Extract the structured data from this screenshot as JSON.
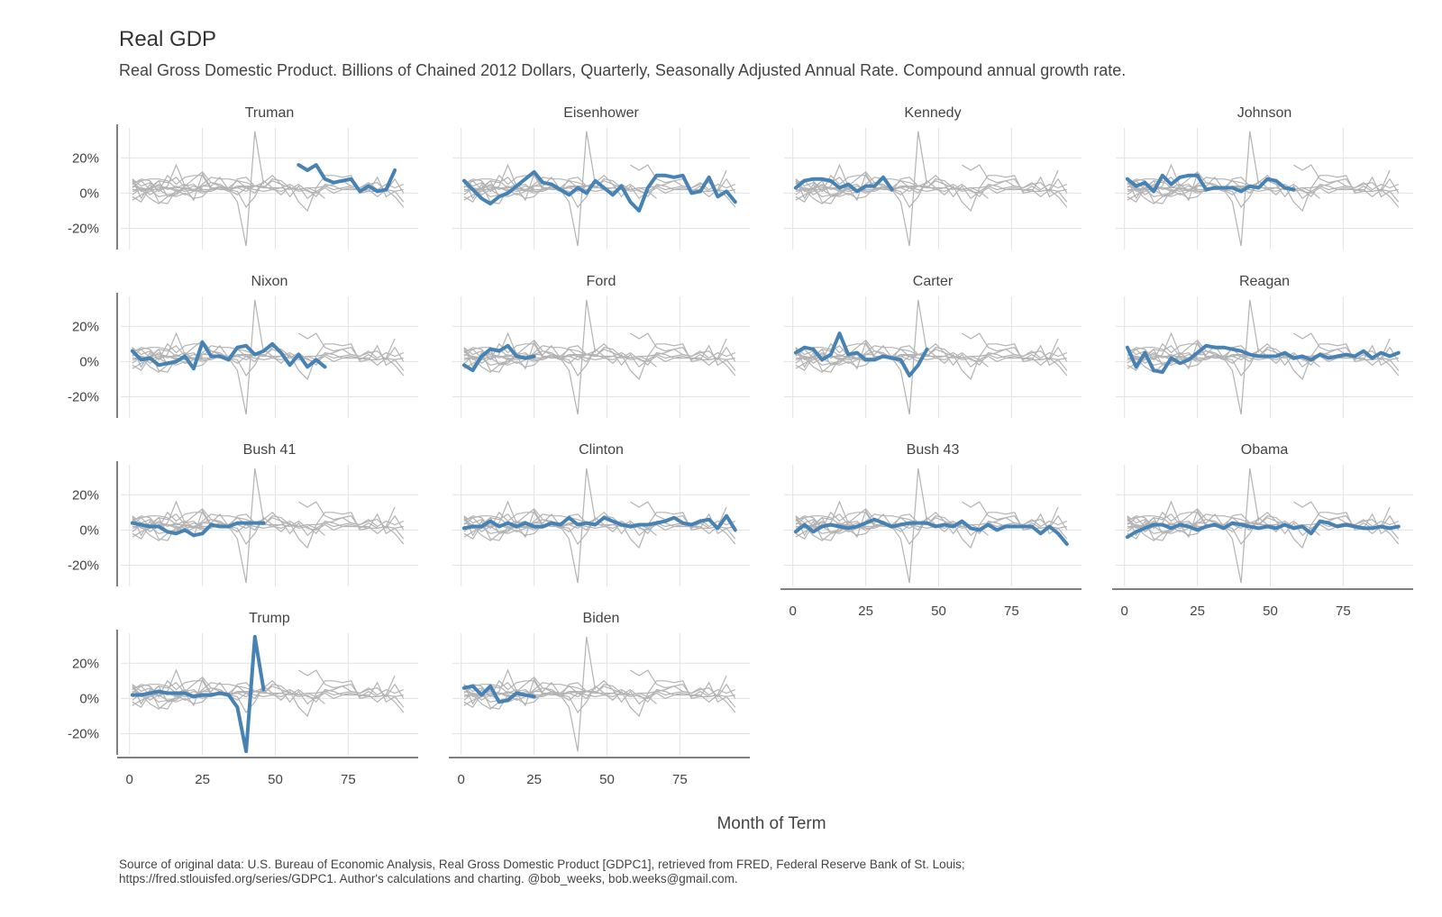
{
  "title": "Real GDP",
  "subtitle": "Real Gross Domestic Product. Billions of Chained 2012 Dollars, Quarterly, Seasonally Adjusted Annual Rate. Compound annual growth rate.",
  "caption_line1": "Source of original data: U.S. Bureau of Economic Analysis, Real Gross Domestic Product [GDPC1], retrieved from FRED, Federal Reserve Bank of St. Louis;",
  "caption_line2": "https://fred.stlouisfed.org/series/GDPC1. Author's calculations and charting. @bob_weeks, bob.weeks@gmail.com.",
  "colors": {
    "highlight": "#4682b4",
    "background_series": "#b3b3b3",
    "grid": "#e3e3e3",
    "axis": "#555555"
  },
  "chart_data": {
    "type": "line",
    "facets": true,
    "xlabel": "Month of Term",
    "ylabel": "",
    "xlim": [
      -3,
      99
    ],
    "ylim": [
      -32,
      37
    ],
    "xticks": [
      0,
      25,
      50,
      75
    ],
    "xtick_labels": [
      "0",
      "25",
      "50",
      "75"
    ],
    "yticks": [
      20,
      0,
      -20
    ],
    "ytick_labels": [
      "20%",
      "0%",
      "-20%"
    ],
    "grid": true,
    "series": [
      {
        "name": "Truman",
        "x": [
          58,
          61,
          64,
          67,
          70,
          73,
          76,
          79,
          82,
          85,
          88,
          91
        ],
        "values": [
          16,
          13,
          16,
          8,
          6,
          7,
          8,
          1,
          4,
          1,
          2,
          13
        ]
      },
      {
        "name": "Eisenhower",
        "x": [
          1,
          4,
          7,
          10,
          13,
          16,
          19,
          22,
          25,
          28,
          31,
          34,
          37,
          40,
          43,
          46,
          49,
          52,
          55,
          58,
          61,
          64,
          67,
          70,
          73,
          76,
          79,
          82,
          85,
          88,
          91,
          94
        ],
        "values": [
          7,
          2,
          -3,
          -6,
          -2,
          0,
          4,
          8,
          12,
          6,
          5,
          2,
          -1,
          3,
          0,
          7,
          3,
          -1,
          4,
          -5,
          -10,
          3,
          10,
          10,
          9,
          10,
          0,
          1,
          9,
          -2,
          1,
          -5
        ]
      },
      {
        "name": "Kennedy",
        "x": [
          1,
          4,
          7,
          10,
          13,
          16,
          19,
          22,
          25,
          28,
          31,
          34
        ],
        "values": [
          3,
          7,
          8,
          8,
          7,
          3,
          5,
          1,
          4,
          4,
          9,
          2
        ]
      },
      {
        "name": "Johnson",
        "x": [
          1,
          4,
          7,
          10,
          13,
          16,
          19,
          22,
          25,
          28,
          31,
          34,
          37,
          40,
          43,
          46,
          49,
          52,
          55,
          58
        ],
        "values": [
          8,
          4,
          6,
          1,
          10,
          5,
          9,
          10,
          10,
          2,
          3,
          3,
          3,
          1,
          4,
          3,
          8,
          7,
          3,
          2
        ]
      },
      {
        "name": "Nixon",
        "x": [
          1,
          4,
          7,
          10,
          13,
          16,
          19,
          22,
          25,
          28,
          31,
          34,
          37,
          40,
          43,
          46,
          49,
          52,
          55,
          58,
          61,
          64,
          67
        ],
        "values": [
          6,
          1,
          2,
          -2,
          -1,
          0,
          3,
          -4,
          11,
          3,
          3,
          1,
          8,
          9,
          4,
          6,
          10,
          5,
          -2,
          4,
          -3,
          1,
          -3
        ]
      },
      {
        "name": "Ford",
        "x": [
          1,
          4,
          7,
          10,
          13,
          16,
          19,
          22,
          25
        ],
        "values": [
          -2,
          -5,
          3,
          7,
          6,
          9,
          3,
          2,
          3
        ]
      },
      {
        "name": "Carter",
        "x": [
          1,
          4,
          7,
          10,
          13,
          16,
          19,
          22,
          25,
          28,
          31,
          34,
          37,
          40,
          43,
          46
        ],
        "values": [
          5,
          8,
          7,
          1,
          4,
          16,
          4,
          5,
          1,
          1,
          3,
          2,
          1,
          -8,
          -2,
          7
        ]
      },
      {
        "name": "Reagan",
        "x": [
          1,
          4,
          7,
          10,
          13,
          16,
          19,
          22,
          25,
          28,
          31,
          34,
          37,
          40,
          43,
          46,
          49,
          52,
          55,
          58,
          61,
          64,
          67,
          70,
          73,
          76,
          79,
          82,
          85,
          88,
          91,
          94
        ],
        "values": [
          8,
          -3,
          5,
          -5,
          -6,
          2,
          -1,
          1,
          5,
          9,
          8,
          8,
          7,
          6,
          4,
          3,
          3,
          3,
          5,
          2,
          3,
          1,
          4,
          2,
          3,
          4,
          3,
          6,
          2,
          5,
          3,
          5
        ]
      },
      {
        "name": "Bush 41",
        "x": [
          1,
          4,
          7,
          10,
          13,
          16,
          19,
          22,
          25,
          28,
          31,
          34,
          37,
          40,
          43,
          46
        ],
        "values": [
          4,
          3,
          2,
          2,
          -1,
          -2,
          0,
          -3,
          -2,
          3,
          2,
          2,
          4,
          4,
          4,
          4
        ]
      },
      {
        "name": "Clinton",
        "x": [
          1,
          4,
          7,
          10,
          13,
          16,
          19,
          22,
          25,
          28,
          31,
          34,
          37,
          40,
          43,
          46,
          49,
          52,
          55,
          58,
          61,
          64,
          67,
          70,
          73,
          76,
          79,
          82,
          85,
          88,
          91,
          94
        ],
        "values": [
          1,
          2,
          2,
          5,
          2,
          4,
          2,
          4,
          2,
          2,
          4,
          3,
          7,
          3,
          4,
          3,
          7,
          5,
          3,
          2,
          3,
          3,
          4,
          5,
          7,
          4,
          3,
          5,
          6,
          1,
          8,
          0
        ]
      },
      {
        "name": "Bush 43",
        "x": [
          1,
          4,
          7,
          10,
          13,
          16,
          19,
          22,
          25,
          28,
          31,
          34,
          37,
          40,
          43,
          46,
          49,
          52,
          55,
          58,
          61,
          64,
          67,
          70,
          73,
          76,
          79,
          82,
          85,
          88,
          91,
          94
        ],
        "values": [
          -1,
          3,
          -1,
          2,
          3,
          2,
          1,
          2,
          4,
          6,
          4,
          2,
          3,
          4,
          4,
          4,
          2,
          3,
          2,
          5,
          1,
          0,
          3,
          0,
          2,
          2,
          2,
          2,
          -2,
          2,
          -2,
          -8
        ]
      },
      {
        "name": "Obama",
        "x": [
          1,
          4,
          7,
          10,
          13,
          16,
          19,
          22,
          25,
          28,
          31,
          34,
          37,
          40,
          43,
          46,
          49,
          52,
          55,
          58,
          61,
          64,
          67,
          70,
          73,
          76,
          79,
          82,
          85,
          88,
          91,
          94
        ],
        "values": [
          -4,
          -1,
          1,
          3,
          3,
          1,
          3,
          2,
          0,
          2,
          3,
          1,
          4,
          3,
          2,
          1,
          2,
          1,
          3,
          1,
          2,
          -2,
          5,
          4,
          2,
          3,
          2,
          1,
          1,
          2,
          1,
          2
        ]
      },
      {
        "name": "Trump",
        "x": [
          1,
          4,
          7,
          10,
          13,
          16,
          19,
          22,
          25,
          28,
          31,
          34,
          37,
          40,
          43,
          46
        ],
        "values": [
          2,
          2,
          3,
          4,
          3,
          3,
          3,
          1,
          2,
          2,
          3,
          2,
          -5,
          -30,
          35,
          5
        ]
      },
      {
        "name": "Biden",
        "x": [
          1,
          4,
          7,
          10,
          13,
          16,
          19,
          22,
          25
        ],
        "values": [
          6,
          7,
          2,
          7,
          -2,
          -1,
          3,
          2,
          1
        ]
      }
    ]
  }
}
